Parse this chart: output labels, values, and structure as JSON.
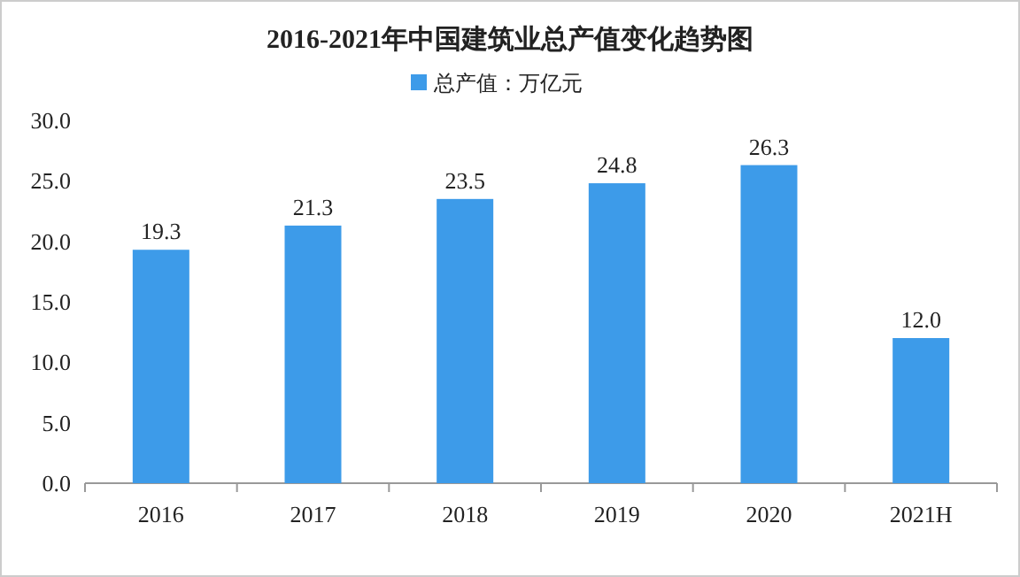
{
  "chart_data": {
    "type": "bar",
    "title": "2016-2021年中国建筑业总产值变化趋势图",
    "categories": [
      "2016",
      "2017",
      "2018",
      "2019",
      "2020",
      "2021H"
    ],
    "series": [
      {
        "name": "总产值：万亿元",
        "color": "#3d9be9",
        "values": [
          19.3,
          21.3,
          23.5,
          24.8,
          26.3,
          12.0
        ],
        "value_labels": [
          "19.3",
          "21.3",
          "23.5",
          "24.8",
          "26.3",
          "12.0"
        ]
      }
    ],
    "ylim": [
      0,
      30
    ],
    "yticks": [
      {
        "value": 0,
        "label": "0.0"
      },
      {
        "value": 5,
        "label": "5.0"
      },
      {
        "value": 10,
        "label": "10.0"
      },
      {
        "value": 15,
        "label": "15.0"
      },
      {
        "value": 20,
        "label": "20.0"
      },
      {
        "value": 25,
        "label": "25.0"
      },
      {
        "value": 30,
        "label": "30.0"
      }
    ],
    "legend": "top"
  }
}
